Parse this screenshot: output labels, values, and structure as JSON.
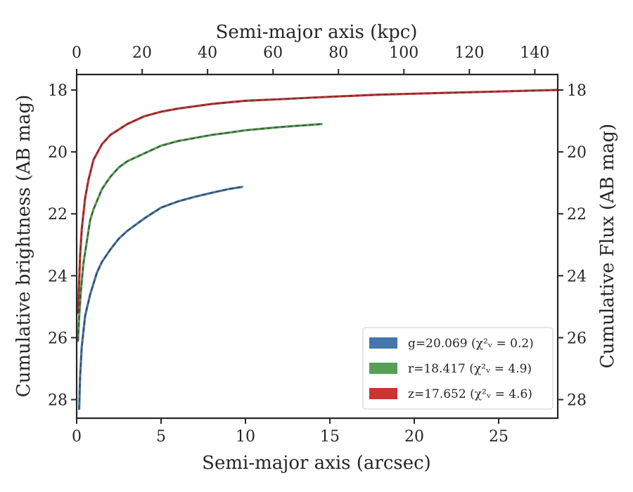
{
  "chart_data": {
    "type": "line",
    "xlabel": "Semi-major axis (arcsec)",
    "ylabel": "Cumulative brightness (AB mag)",
    "top_xlabel": "Semi-major axis (kpc)",
    "right_ylabel": "Cumulative Flux (AB mag)",
    "xlim": [
      0,
      28.5
    ],
    "ylim": [
      28.6,
      17.5
    ],
    "top_xlim": [
      0,
      147
    ],
    "y_inverted": true,
    "x_ticks": [
      "0",
      "5",
      "10",
      "15",
      "20",
      "25"
    ],
    "x_tick_values": [
      0,
      5,
      10,
      15,
      20,
      25
    ],
    "top_x_ticks": [
      "0",
      "20",
      "40",
      "60",
      "80",
      "100",
      "120",
      "140"
    ],
    "top_x_tick_values": [
      0,
      20,
      40,
      60,
      80,
      100,
      120,
      140
    ],
    "y_ticks": [
      "18",
      "20",
      "22",
      "24",
      "26",
      "28"
    ],
    "y_tick_values": [
      18,
      20,
      22,
      24,
      26,
      28
    ],
    "grid": false,
    "legend_position": "bottom-right",
    "series": [
      {
        "band": "g",
        "legend": "g=20.069",
        "legend_chi": "(χ²ᵥ = 0.2)",
        "color": "#4477aa",
        "points": [
          [
            0.15,
            28.3
          ],
          [
            0.2,
            27.3
          ],
          [
            0.3,
            26.3
          ],
          [
            0.5,
            25.3
          ],
          [
            0.8,
            24.6
          ],
          [
            1.2,
            23.9
          ],
          [
            1.5,
            23.55
          ],
          [
            2,
            23.15
          ],
          [
            2.5,
            22.8
          ],
          [
            3,
            22.55
          ],
          [
            4,
            22.15
          ],
          [
            5,
            21.8
          ],
          [
            6,
            21.6
          ],
          [
            7,
            21.45
          ],
          [
            8,
            21.32
          ],
          [
            9,
            21.2
          ],
          [
            9.8,
            21.13
          ]
        ]
      },
      {
        "band": "r",
        "legend": "r=18.417",
        "legend_chi": "(χ²ᵥ = 4.9)",
        "color": "#55a055",
        "points": [
          [
            0.08,
            26.1
          ],
          [
            0.15,
            25.3
          ],
          [
            0.25,
            24.5
          ],
          [
            0.4,
            23.6
          ],
          [
            0.6,
            22.9
          ],
          [
            0.8,
            22.2
          ],
          [
            1,
            21.85
          ],
          [
            1.5,
            21.2
          ],
          [
            2,
            20.8
          ],
          [
            2.5,
            20.5
          ],
          [
            3,
            20.3
          ],
          [
            4,
            20.05
          ],
          [
            5,
            19.8
          ],
          [
            6,
            19.65
          ],
          [
            7,
            19.55
          ],
          [
            8,
            19.45
          ],
          [
            9,
            19.38
          ],
          [
            10,
            19.3
          ],
          [
            11,
            19.25
          ],
          [
            12,
            19.2
          ],
          [
            13,
            19.16
          ],
          [
            14,
            19.12
          ],
          [
            14.5,
            19.1
          ]
        ]
      },
      {
        "band": "z",
        "legend": "z=17.652",
        "legend_chi": "(χ²ᵥ = 4.6)",
        "color": "#cc3333",
        "points": [
          [
            0.08,
            25.2
          ],
          [
            0.12,
            24.6
          ],
          [
            0.2,
            23.4
          ],
          [
            0.3,
            22.5
          ],
          [
            0.5,
            21.5
          ],
          [
            0.7,
            20.9
          ],
          [
            1,
            20.25
          ],
          [
            1.5,
            19.75
          ],
          [
            2,
            19.45
          ],
          [
            3,
            19.1
          ],
          [
            4,
            18.85
          ],
          [
            5,
            18.7
          ],
          [
            6,
            18.6
          ],
          [
            8,
            18.45
          ],
          [
            10,
            18.35
          ],
          [
            12,
            18.3
          ],
          [
            15,
            18.22
          ],
          [
            18,
            18.15
          ],
          [
            20,
            18.12
          ],
          [
            22,
            18.09
          ],
          [
            25,
            18.05
          ],
          [
            28.5,
            18.0
          ]
        ]
      }
    ]
  }
}
